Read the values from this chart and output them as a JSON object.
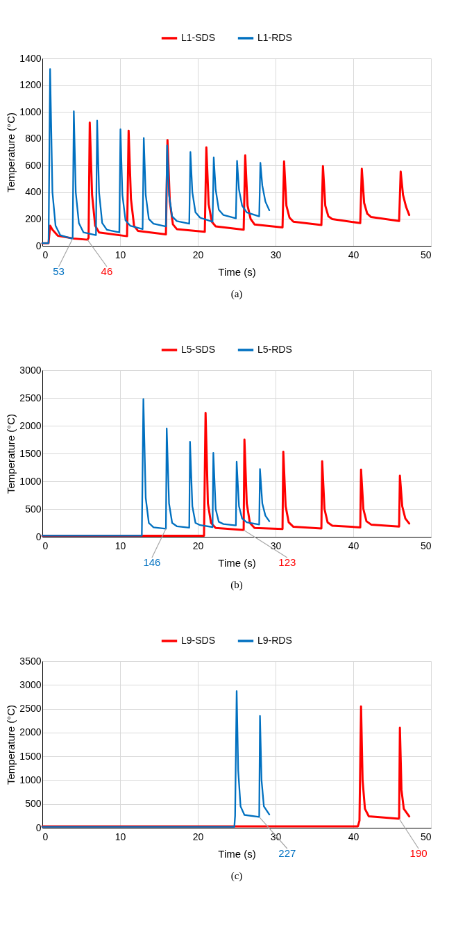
{
  "chart_data": [
    {
      "type": "line",
      "xlabel": "Time (s)",
      "ylabel": "Temperature (°C)",
      "xlim": [
        0,
        50
      ],
      "xticks": [
        0,
        10,
        20,
        30,
        40,
        50
      ],
      "ylim": [
        0,
        1400
      ],
      "yticks": [
        0,
        200,
        400,
        600,
        800,
        1000,
        1200,
        1400
      ],
      "grid": true,
      "legend": "top",
      "series": [
        {
          "name": "L1-SDS",
          "color": "#ff0000",
          "x": [
            0,
            0.8,
            1.0,
            1.3,
            2,
            4,
            5.8,
            5.95,
            6.1,
            6.4,
            6.8,
            7.3,
            10.9,
            11.1,
            11.4,
            11.8,
            12.3,
            15.9,
            16.1,
            16.4,
            16.8,
            17.3,
            20.9,
            21.1,
            21.4,
            21.8,
            22.3,
            25.9,
            26.1,
            26.4,
            26.8,
            27.3,
            30.9,
            31.1,
            31.4,
            31.8,
            32.3,
            35.9,
            36.1,
            36.4,
            36.8,
            37.3,
            40.9,
            41.1,
            41.4,
            41.8,
            42.3,
            45.9,
            46.1,
            46.4,
            46.8,
            47.2
          ],
          "values": [
            20,
            20,
            150,
            120,
            75,
            55,
            46,
            60,
            920,
            380,
            150,
            100,
            72,
            860,
            350,
            150,
            112,
            85,
            790,
            330,
            160,
            125,
            105,
            735,
            310,
            180,
            145,
            120,
            675,
            300,
            200,
            160,
            138,
            630,
            300,
            210,
            180,
            155,
            595,
            300,
            220,
            200,
            170,
            575,
            320,
            240,
            215,
            185,
            555,
            380,
            290,
            230
          ]
        },
        {
          "name": "L1-RDS",
          "color": "#0070c0",
          "x": [
            0,
            0.8,
            1.0,
            1.3,
            1.7,
            2.3,
            3.9,
            4.05,
            4.3,
            4.7,
            5.3,
            6.9,
            7.05,
            7.3,
            7.7,
            8.3,
            9.9,
            10.05,
            10.3,
            10.7,
            11.3,
            12.9,
            13.05,
            13.3,
            13.7,
            14.3,
            15.9,
            16.05,
            16.3,
            16.7,
            17.3,
            18.9,
            19.05,
            19.3,
            19.7,
            20.3,
            21.9,
            22.05,
            22.3,
            22.7,
            23.3,
            24.9,
            25.05,
            25.3,
            25.7,
            26.3,
            27.9,
            28.05,
            28.3,
            28.7,
            29.2
          ],
          "values": [
            20,
            20,
            1320,
            400,
            150,
            80,
            53,
            1005,
            400,
            170,
            100,
            80,
            935,
            400,
            170,
            120,
            100,
            870,
            380,
            190,
            150,
            125,
            805,
            380,
            200,
            165,
            145,
            750,
            380,
            220,
            185,
            165,
            700,
            400,
            250,
            210,
            180,
            660,
            420,
            270,
            230,
            205,
            635,
            420,
            300,
            250,
            220,
            620,
            450,
            330,
            265
          ]
        }
      ],
      "annotations": [
        {
          "text": "53",
          "x": 3.9,
          "y": 53
        },
        {
          "text": "46",
          "x": 5.8,
          "y": 46
        },
        "(a)"
      ]
    },
    {
      "type": "line",
      "xlabel": "Time (s)",
      "ylabel": "Temperature (°C)",
      "xlim": [
        0,
        50
      ],
      "xticks": [
        0,
        10,
        20,
        30,
        40,
        50
      ],
      "ylim": [
        0,
        3000
      ],
      "yticks": [
        0,
        500,
        1000,
        1500,
        2000,
        2500,
        3000
      ],
      "grid": true,
      "legend": "top",
      "series": [
        {
          "name": "L5-SDS",
          "color": "#ff0000",
          "x": [
            0,
            20.8,
            21.0,
            21.3,
            21.7,
            22.3,
            25.9,
            26.0,
            26.3,
            26.7,
            27.3,
            30.9,
            31.0,
            31.3,
            31.7,
            32.3,
            35.9,
            36.0,
            36.3,
            36.7,
            37.3,
            40.9,
            41.0,
            41.3,
            41.7,
            42.3,
            45.9,
            46.0,
            46.3,
            46.7,
            47.2
          ],
          "values": [
            20,
            20,
            2230,
            600,
            250,
            160,
            123,
            1750,
            600,
            250,
            160,
            140,
            1530,
            550,
            260,
            180,
            150,
            1360,
            500,
            260,
            200,
            170,
            1210,
            500,
            280,
            220,
            185,
            1100,
            550,
            330,
            240
          ]
        },
        {
          "name": "L5-RDS",
          "color": "#0070c0",
          "x": [
            0,
            12.8,
            13.0,
            13.3,
            13.7,
            14.3,
            15.9,
            16.0,
            16.3,
            16.7,
            17.3,
            18.9,
            19.0,
            19.3,
            19.7,
            20.3,
            21.9,
            22.0,
            22.3,
            22.7,
            23.3,
            24.9,
            25.0,
            25.3,
            25.7,
            26.3,
            27.9,
            28.0,
            28.3,
            28.7,
            29.2
          ],
          "values": [
            20,
            20,
            2480,
            700,
            250,
            170,
            146,
            1950,
            600,
            250,
            190,
            165,
            1710,
            550,
            250,
            210,
            175,
            1510,
            500,
            270,
            230,
            205,
            1350,
            550,
            330,
            260,
            220,
            1220,
            600,
            380,
            280
          ]
        }
      ],
      "annotations": [
        {
          "text": "146",
          "x": 15.9,
          "y": 146
        },
        {
          "text": "123",
          "x": 25.9,
          "y": 123
        },
        "(b)"
      ]
    },
    {
      "type": "line",
      "xlabel": "Time (s)",
      "ylabel": "Temperature (°C)",
      "xlim": [
        0,
        50
      ],
      "xticks": [
        0,
        10,
        20,
        30,
        40,
        50
      ],
      "ylim": [
        0,
        3500
      ],
      "yticks": [
        0,
        500,
        1000,
        1500,
        2000,
        2500,
        3000,
        3500
      ],
      "grid": true,
      "legend": "top",
      "series": [
        {
          "name": "L9-SDS",
          "color": "#ff0000",
          "x": [
            0,
            40.6,
            40.8,
            41.0,
            41.2,
            41.5,
            42.0,
            45.9,
            46.0,
            46.2,
            46.5,
            47.2
          ],
          "values": [
            30,
            30,
            150,
            2550,
            1000,
            400,
            240,
            190,
            2100,
            800,
            400,
            240
          ]
        },
        {
          "name": "L9-RDS",
          "color": "#0070c0",
          "x": [
            0,
            24.7,
            24.8,
            25.0,
            25.2,
            25.5,
            26.0,
            27.9,
            28.0,
            28.2,
            28.5,
            29.2
          ],
          "values": [
            20,
            20,
            250,
            2870,
            1200,
            450,
            270,
            227,
            2350,
            1000,
            450,
            280
          ]
        }
      ],
      "annotations": [
        {
          "text": "227",
          "x": 27.9,
          "y": 227
        },
        {
          "text": "190",
          "x": 45.9,
          "y": 190
        },
        "(c)"
      ]
    }
  ]
}
